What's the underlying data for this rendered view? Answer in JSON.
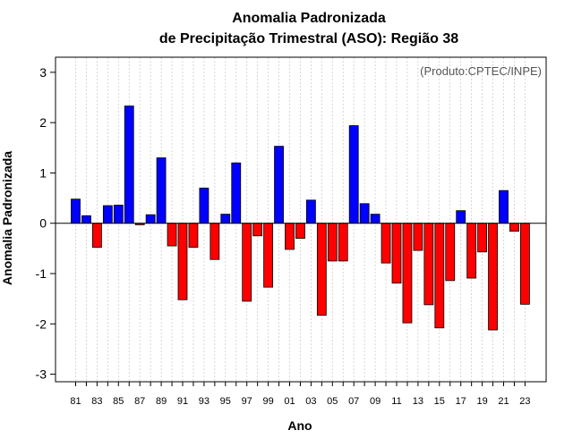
{
  "chart_data": {
    "type": "bar",
    "title_line1": "Anomalia Padronizada",
    "title_line2": "de Precipitação Trimestral (ASO): Região 38",
    "credit": "(Produto:CPTEC/INPE)",
    "xlabel": "Ano",
    "ylabel": "Anomalia Padronizada",
    "ylim": [
      -3.15,
      3.3
    ],
    "yticks": [
      -3,
      -2,
      -1,
      0,
      1,
      2,
      3
    ],
    "xtick_labels": [
      "81",
      "83",
      "85",
      "87",
      "89",
      "91",
      "93",
      "95",
      "97",
      "99",
      "01",
      "03",
      "05",
      "07",
      "09",
      "11",
      "13",
      "15",
      "17",
      "19",
      "21",
      "23"
    ],
    "years": [
      1981,
      1982,
      1983,
      1984,
      1985,
      1986,
      1987,
      1988,
      1989,
      1990,
      1991,
      1992,
      1993,
      1994,
      1995,
      1996,
      1997,
      1998,
      1999,
      2000,
      2001,
      2002,
      2003,
      2004,
      2005,
      2006,
      2007,
      2008,
      2009,
      2010,
      2011,
      2012,
      2013,
      2014,
      2015,
      2016,
      2017,
      2018,
      2019,
      2020,
      2021,
      2022,
      2023
    ],
    "values": [
      0.48,
      0.15,
      -0.48,
      0.35,
      0.36,
      2.33,
      -0.03,
      0.17,
      1.3,
      -0.45,
      -1.52,
      -0.48,
      0.7,
      -0.72,
      0.18,
      1.2,
      -1.55,
      -0.25,
      -1.27,
      1.53,
      -0.52,
      -0.3,
      0.46,
      -1.83,
      -0.75,
      -0.75,
      1.94,
      0.39,
      0.18,
      -0.79,
      -1.19,
      -1.98,
      -0.54,
      -1.62,
      -2.08,
      -1.14,
      0.25,
      -1.09,
      -0.57,
      -2.12,
      0.65,
      -0.16,
      -1.61
    ],
    "positive_color": "#0000ff",
    "negative_color": "#ff0000"
  }
}
